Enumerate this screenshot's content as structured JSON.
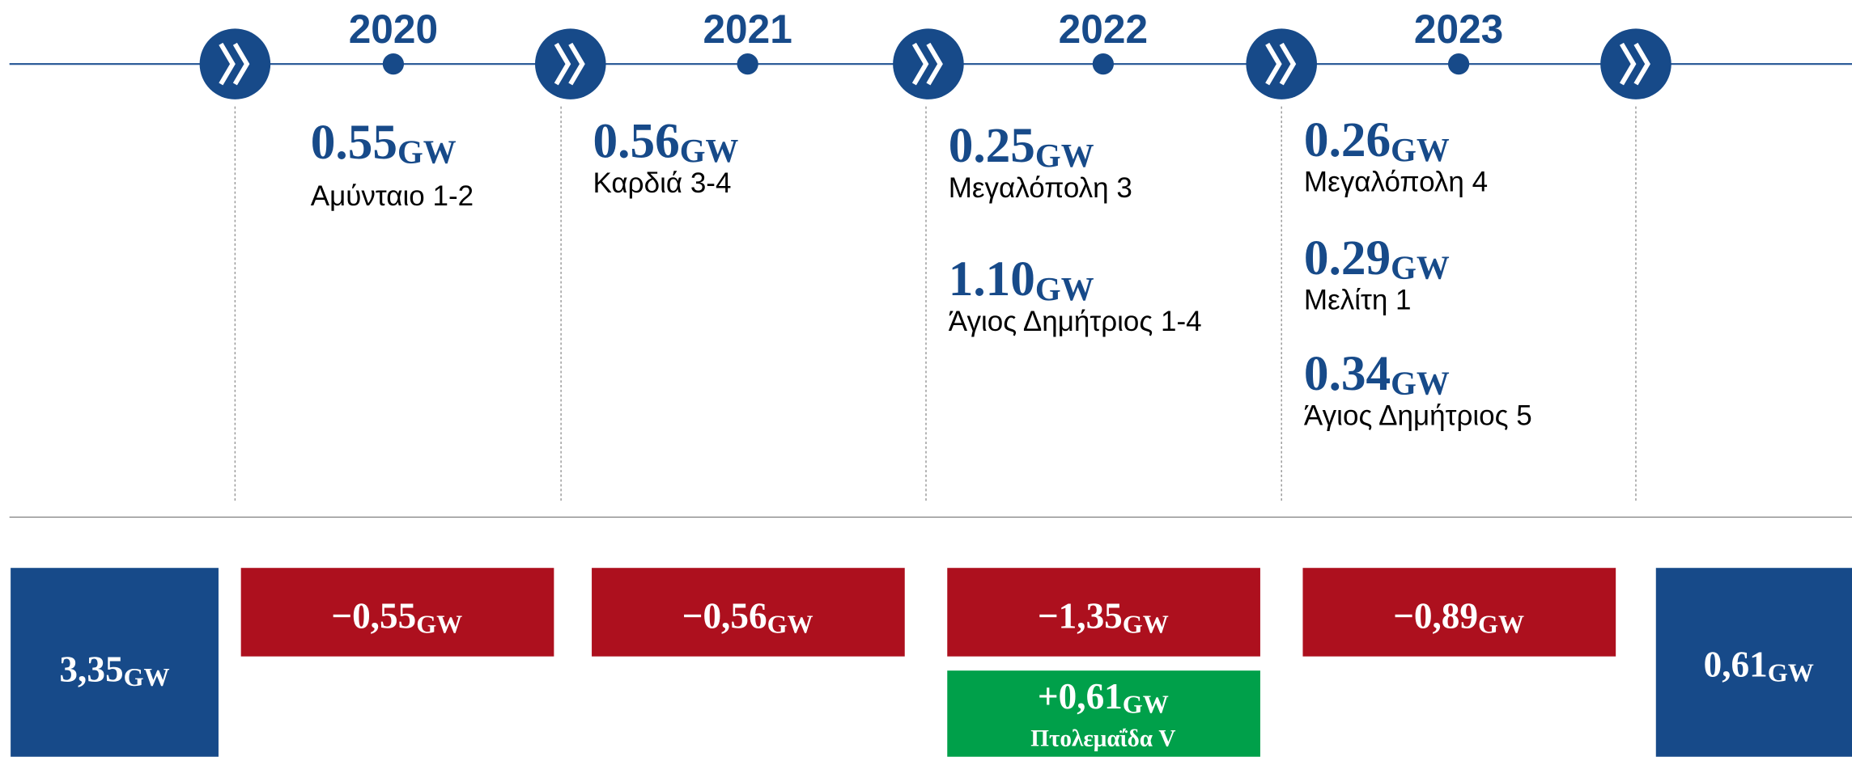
{
  "unit": "GW",
  "start": "3,35",
  "end": "0,61",
  "columns": [
    {
      "year": "2020",
      "change": "−0,55",
      "units": [
        {
          "capacity": "0.55",
          "name": "Αμύνταιο 1-2"
        }
      ]
    },
    {
      "year": "2021",
      "change": "−0,56",
      "units": [
        {
          "capacity": "0.56",
          "name": "Καρδιά 3-4"
        }
      ]
    },
    {
      "year": "2022",
      "change": "−1,35",
      "units": [
        {
          "capacity": "0.25",
          "name": "Μεγαλόπολη 3"
        },
        {
          "capacity": "1.10",
          "name": "Άγιος Δημήτριος 1-4"
        }
      ],
      "addition": {
        "change": "+0,61",
        "name": "Πτολεμαΐδα V"
      }
    },
    {
      "year": "2023",
      "change": "−0,89",
      "units": [
        {
          "capacity": "0.26",
          "name": "Μεγαλόπολη 4"
        },
        {
          "capacity": "0.29",
          "name": "Μελίτη 1"
        },
        {
          "capacity": "0.34",
          "name": "Άγιος Δημήτριος 5"
        }
      ]
    }
  ]
}
